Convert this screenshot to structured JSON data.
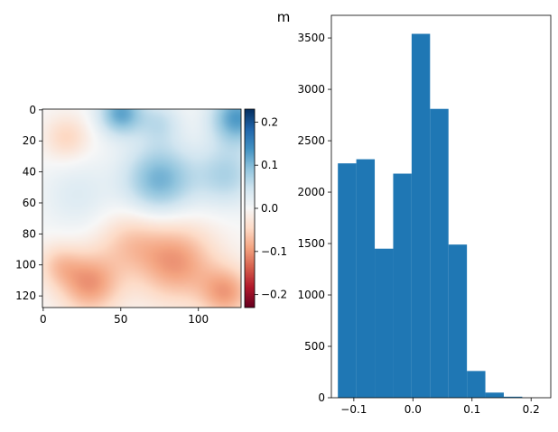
{
  "chart_data": [
    {
      "type": "heatmap",
      "title": "",
      "xlabel": "",
      "ylabel": "",
      "grid": false,
      "colormap": "RdBu",
      "xlim": [
        0,
        127
      ],
      "ylim": [
        127,
        0
      ],
      "x_ticks": [
        0,
        50,
        100
      ],
      "y_ticks": [
        0,
        20,
        40,
        60,
        80,
        100,
        120
      ],
      "blobs": [
        {
          "x": 15,
          "y": 18,
          "sigma": 10,
          "value": -0.05
        },
        {
          "x": 50,
          "y": 2,
          "sigma": 10,
          "value": 0.12
        },
        {
          "x": 125,
          "y": 5,
          "sigma": 12,
          "value": 0.13
        },
        {
          "x": 75,
          "y": 45,
          "sigma": 16,
          "value": 0.11
        },
        {
          "x": 118,
          "y": 42,
          "sigma": 14,
          "value": 0.07
        },
        {
          "x": 22,
          "y": 55,
          "sigma": 16,
          "value": 0.03
        },
        {
          "x": 75,
          "y": 8,
          "sigma": 10,
          "value": 0.05
        },
        {
          "x": 30,
          "y": 112,
          "sigma": 14,
          "value": -0.1
        },
        {
          "x": 85,
          "y": 98,
          "sigma": 18,
          "value": -0.1
        },
        {
          "x": 118,
          "y": 118,
          "sigma": 12,
          "value": -0.09
        },
        {
          "x": 55,
          "y": 85,
          "sigma": 14,
          "value": -0.05
        },
        {
          "x": 10,
          "y": 100,
          "sigma": 10,
          "value": -0.05
        }
      ],
      "colorbar": {
        "range": [
          -0.23,
          0.23
        ],
        "ticks": [
          0.2,
          0.1,
          0.0,
          -0.1,
          -0.2
        ],
        "tick_labels": [
          "0.2",
          "0.1",
          "0.0",
          "−0.1",
          "−0.2"
        ]
      }
    },
    {
      "type": "bar",
      "title": "m",
      "xlabel": "",
      "ylabel": "",
      "grid": false,
      "color": "#1f77b4",
      "bin_edges": [
        -0.127,
        -0.0958,
        -0.0646,
        -0.0334,
        -0.0022,
        0.029,
        0.0602,
        0.0914,
        0.1226,
        0.1538,
        0.185,
        0.2162
      ],
      "values": [
        2280,
        2320,
        1450,
        2180,
        3540,
        2810,
        1490,
        260,
        50,
        10,
        0
      ],
      "xlim": [
        -0.138,
        0.2333
      ],
      "ylim": [
        0,
        3720
      ],
      "x_ticks": [
        -0.1,
        0.0,
        0.1,
        0.2
      ],
      "x_tick_labels": [
        "−0.1",
        "0.0",
        "0.1",
        "0.2"
      ],
      "y_ticks": [
        0,
        500,
        1000,
        1500,
        2000,
        2500,
        3000,
        3500
      ]
    }
  ]
}
